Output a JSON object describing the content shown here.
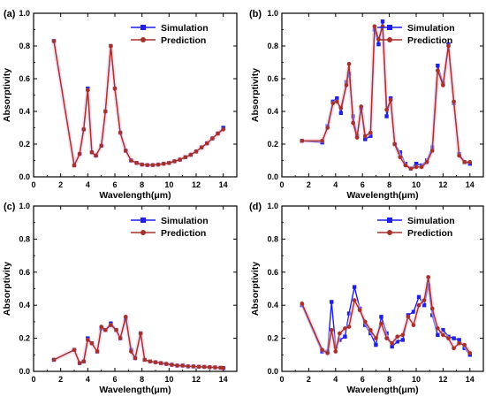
{
  "figure": {
    "panel_labels": [
      "(a)",
      "(b)",
      "(c)",
      "(d)"
    ]
  },
  "chart_data": [
    {
      "type": "line",
      "panel": "(a)",
      "xlabel": "Wavelength(μm)",
      "ylabel": "Absorptivity",
      "xlim": [
        0,
        15
      ],
      "ylim": [
        0,
        1.0
      ],
      "xticks": [
        "0",
        "2",
        "4",
        "6",
        "8",
        "10",
        "12",
        "14"
      ],
      "yticks": [
        "0.0",
        "0.2",
        "0.4",
        "0.6",
        "0.8",
        "1.0"
      ],
      "legend": "top-right",
      "series": [
        {
          "name": "Simulation",
          "color": "#1f1fe6",
          "marker": "square",
          "x": [
            1.5,
            3.0,
            3.4,
            3.7,
            4.0,
            4.3,
            4.6,
            5.0,
            5.3,
            5.7,
            6.0,
            6.4,
            6.8,
            7.2,
            7.6,
            8.0,
            8.4,
            8.8,
            9.2,
            9.6,
            10.0,
            10.4,
            10.8,
            11.2,
            11.6,
            12.0,
            12.4,
            12.8,
            13.2,
            13.6,
            14.0
          ],
          "y": [
            0.83,
            0.07,
            0.14,
            0.29,
            0.54,
            0.15,
            0.13,
            0.19,
            0.4,
            0.8,
            0.54,
            0.27,
            0.16,
            0.1,
            0.085,
            0.075,
            0.072,
            0.072,
            0.075,
            0.08,
            0.085,
            0.095,
            0.105,
            0.12,
            0.135,
            0.155,
            0.18,
            0.205,
            0.235,
            0.265,
            0.3
          ]
        },
        {
          "name": "Prediction",
          "color": "#a5312a",
          "marker": "circle",
          "x": [
            1.5,
            3.0,
            3.4,
            3.7,
            4.0,
            4.3,
            4.6,
            5.0,
            5.3,
            5.7,
            6.0,
            6.4,
            6.8,
            7.2,
            7.6,
            8.0,
            8.4,
            8.8,
            9.2,
            9.6,
            10.0,
            10.4,
            10.8,
            11.2,
            11.6,
            12.0,
            12.4,
            12.8,
            13.2,
            13.6,
            14.0
          ],
          "y": [
            0.83,
            0.07,
            0.14,
            0.29,
            0.53,
            0.15,
            0.13,
            0.19,
            0.4,
            0.8,
            0.54,
            0.27,
            0.16,
            0.1,
            0.085,
            0.075,
            0.072,
            0.072,
            0.075,
            0.08,
            0.085,
            0.095,
            0.105,
            0.12,
            0.135,
            0.155,
            0.18,
            0.205,
            0.235,
            0.265,
            0.29
          ]
        }
      ]
    },
    {
      "type": "line",
      "panel": "(b)",
      "xlabel": "Wavelength(μm)",
      "ylabel": "Absorptivity",
      "xlim": [
        0,
        15
      ],
      "ylim": [
        0,
        1.0
      ],
      "xticks": [
        "0",
        "2",
        "4",
        "6",
        "8",
        "10",
        "12",
        "14"
      ],
      "yticks": [
        "0.0",
        "0.2",
        "0.4",
        "0.6",
        "0.8",
        "1.0"
      ],
      "legend": "top-right",
      "series": [
        {
          "name": "Simulation",
          "color": "#1f1fe6",
          "marker": "square",
          "x": [
            1.5,
            3.0,
            3.4,
            3.8,
            4.1,
            4.4,
            4.8,
            5.0,
            5.3,
            5.6,
            5.9,
            6.2,
            6.6,
            6.9,
            7.2,
            7.5,
            7.8,
            8.1,
            8.4,
            8.8,
            9.2,
            9.6,
            10.0,
            10.4,
            10.8,
            11.2,
            11.6,
            12.0,
            12.4,
            12.8,
            13.2,
            13.6,
            14.0
          ],
          "y": [
            0.22,
            0.21,
            0.31,
            0.46,
            0.48,
            0.39,
            0.58,
            0.63,
            0.37,
            0.25,
            0.42,
            0.23,
            0.25,
            0.9,
            0.81,
            0.95,
            0.37,
            0.48,
            0.2,
            0.15,
            0.08,
            0.05,
            0.08,
            0.07,
            0.1,
            0.18,
            0.68,
            0.57,
            0.81,
            0.45,
            0.14,
            0.09,
            0.08
          ]
        },
        {
          "name": "Prediction",
          "color": "#a5312a",
          "marker": "circle",
          "x": [
            1.5,
            3.0,
            3.4,
            3.8,
            4.1,
            4.4,
            4.8,
            5.0,
            5.3,
            5.6,
            5.9,
            6.2,
            6.6,
            6.9,
            7.2,
            7.5,
            7.8,
            8.1,
            8.4,
            8.8,
            9.2,
            9.6,
            10.0,
            10.4,
            10.8,
            11.2,
            11.6,
            12.0,
            12.4,
            12.8,
            13.2,
            13.6,
            14.0
          ],
          "y": [
            0.22,
            0.22,
            0.3,
            0.45,
            0.46,
            0.42,
            0.56,
            0.69,
            0.33,
            0.24,
            0.43,
            0.25,
            0.27,
            0.92,
            0.84,
            0.92,
            0.41,
            0.47,
            0.2,
            0.12,
            0.07,
            0.05,
            0.06,
            0.06,
            0.09,
            0.16,
            0.65,
            0.56,
            0.8,
            0.46,
            0.13,
            0.09,
            0.09
          ]
        }
      ]
    },
    {
      "type": "line",
      "panel": "(c)",
      "xlabel": "Wavelength(μm)",
      "ylabel": "Absorptivity",
      "xlim": [
        0,
        15
      ],
      "ylim": [
        0,
        1.0
      ],
      "xticks": [
        "0",
        "2",
        "4",
        "6",
        "8",
        "10",
        "12",
        "14"
      ],
      "yticks": [
        "0.0",
        "0.2",
        "0.4",
        "0.6",
        "0.8",
        "1.0"
      ],
      "legend": "top-right",
      "series": [
        {
          "name": "Simulation",
          "color": "#1f1fe6",
          "marker": "square",
          "x": [
            1.5,
            3.0,
            3.4,
            3.7,
            4.0,
            4.3,
            4.7,
            5.0,
            5.3,
            5.7,
            6.1,
            6.4,
            6.8,
            7.2,
            7.5,
            7.9,
            8.2,
            8.6,
            9.0,
            9.4,
            9.8,
            10.2,
            10.6,
            11.0,
            11.4,
            11.8,
            12.2,
            12.6,
            13.0,
            13.4,
            13.8,
            14.0
          ],
          "y": [
            0.07,
            0.13,
            0.05,
            0.06,
            0.2,
            0.17,
            0.12,
            0.26,
            0.25,
            0.29,
            0.25,
            0.2,
            0.32,
            0.13,
            0.08,
            0.23,
            0.07,
            0.06,
            0.055,
            0.05,
            0.045,
            0.04,
            0.035,
            0.035,
            0.03,
            0.03,
            0.028,
            0.027,
            0.025,
            0.024,
            0.022,
            0.02
          ]
        },
        {
          "name": "Prediction",
          "color": "#a5312a",
          "marker": "circle",
          "x": [
            1.5,
            3.0,
            3.4,
            3.7,
            4.0,
            4.3,
            4.7,
            5.0,
            5.3,
            5.7,
            6.1,
            6.4,
            6.8,
            7.2,
            7.5,
            7.9,
            8.2,
            8.6,
            9.0,
            9.4,
            9.8,
            10.2,
            10.6,
            11.0,
            11.4,
            11.8,
            12.2,
            12.6,
            13.0,
            13.4,
            13.8,
            14.0
          ],
          "y": [
            0.07,
            0.13,
            0.05,
            0.06,
            0.19,
            0.17,
            0.12,
            0.27,
            0.25,
            0.28,
            0.25,
            0.2,
            0.33,
            0.12,
            0.08,
            0.23,
            0.07,
            0.06,
            0.055,
            0.05,
            0.045,
            0.04,
            0.035,
            0.035,
            0.03,
            0.03,
            0.028,
            0.027,
            0.025,
            0.024,
            0.022,
            0.02
          ]
        }
      ]
    },
    {
      "type": "line",
      "panel": "(d)",
      "xlabel": "Wavelength(μm)",
      "ylabel": "Absorptivity",
      "xlim": [
        0,
        15
      ],
      "ylim": [
        0,
        1.0
      ],
      "xticks": [
        "0",
        "2",
        "4",
        "6",
        "8",
        "10",
        "12",
        "14"
      ],
      "yticks": [
        "0.0",
        "0.2",
        "0.4",
        "0.6",
        "0.8",
        "1.0"
      ],
      "legend": "top-right",
      "series": [
        {
          "name": "Simulation",
          "color": "#1f1fe6",
          "marker": "square",
          "x": [
            1.5,
            3.0,
            3.4,
            3.7,
            4.0,
            4.3,
            4.7,
            5.0,
            5.4,
            5.8,
            6.2,
            6.6,
            7.0,
            7.4,
            7.8,
            8.2,
            8.6,
            9.0,
            9.4,
            9.8,
            10.2,
            10.6,
            10.9,
            11.2,
            11.6,
            12.0,
            12.4,
            12.8,
            13.2,
            13.6,
            14.0
          ],
          "y": [
            0.4,
            0.12,
            0.12,
            0.42,
            0.15,
            0.19,
            0.21,
            0.35,
            0.51,
            0.38,
            0.28,
            0.23,
            0.16,
            0.33,
            0.23,
            0.15,
            0.18,
            0.19,
            0.34,
            0.36,
            0.45,
            0.4,
            0.52,
            0.34,
            0.22,
            0.25,
            0.21,
            0.2,
            0.19,
            0.14,
            0.1
          ]
        },
        {
          "name": "Prediction",
          "color": "#a5312a",
          "marker": "circle",
          "x": [
            1.5,
            3.0,
            3.4,
            3.7,
            4.0,
            4.3,
            4.7,
            5.0,
            5.4,
            5.8,
            6.2,
            6.6,
            7.0,
            7.4,
            7.8,
            8.2,
            8.6,
            9.0,
            9.4,
            9.8,
            10.2,
            10.6,
            10.9,
            11.2,
            11.6,
            12.0,
            12.4,
            12.8,
            13.2,
            13.6,
            14.0
          ],
          "y": [
            0.41,
            0.13,
            0.11,
            0.25,
            0.12,
            0.23,
            0.26,
            0.27,
            0.43,
            0.37,
            0.3,
            0.25,
            0.2,
            0.29,
            0.2,
            0.17,
            0.21,
            0.22,
            0.33,
            0.28,
            0.4,
            0.43,
            0.57,
            0.38,
            0.26,
            0.22,
            0.2,
            0.14,
            0.17,
            0.16,
            0.11
          ]
        }
      ]
    }
  ]
}
